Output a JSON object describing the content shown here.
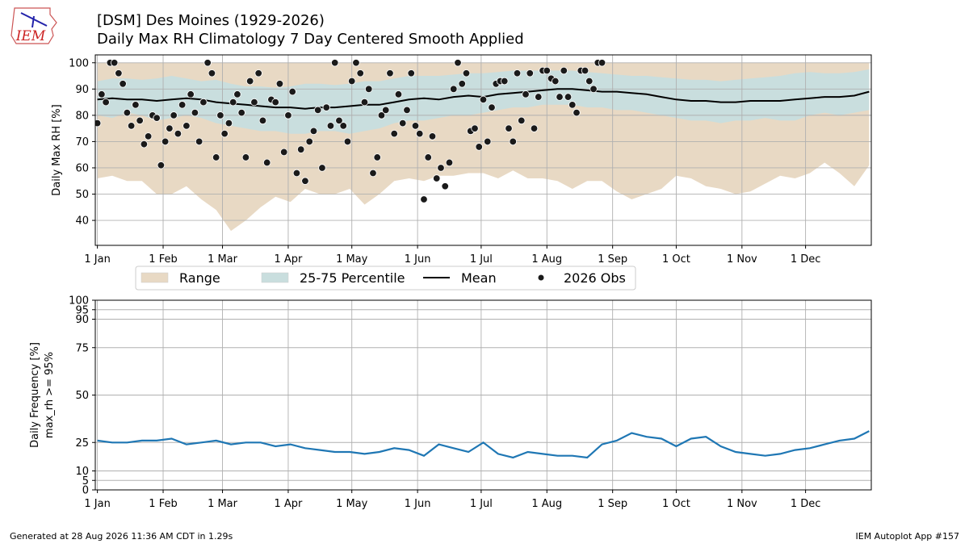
{
  "header": {
    "logo": "IEM",
    "title": "[DSM] Des Moines (1929-2026)",
    "subtitle": "Daily Max RH Climatology  7 Day Centered Smooth Applied"
  },
  "footer": {
    "left": "Generated at 28 Aug 2026 11:36 AM CDT in 1.29s",
    "right": "IEM Autoplot App #157"
  },
  "chart_data": [
    {
      "type": "area",
      "ylabel": "Daily Max RH [%]",
      "grid": true,
      "legend": "lower center",
      "xlim": [
        0,
        366
      ],
      "ylim": [
        30.5,
        103
      ],
      "xticks": [
        {
          "value": 1,
          "label": "1 Jan"
        },
        {
          "value": 32,
          "label": "1 Feb"
        },
        {
          "value": 60,
          "label": "1 Mar"
        },
        {
          "value": 91,
          "label": "1 Apr"
        },
        {
          "value": 121,
          "label": "1 May"
        },
        {
          "value": 152,
          "label": "1 Jun"
        },
        {
          "value": 182,
          "label": "1 Jul"
        },
        {
          "value": 213,
          "label": "1 Aug"
        },
        {
          "value": 244,
          "label": "1 Sep"
        },
        {
          "value": 274,
          "label": "1 Oct"
        },
        {
          "value": 305,
          "label": "1 Nov"
        },
        {
          "value": 335,
          "label": "1 Dec"
        }
      ],
      "yticks": [
        40,
        50,
        60,
        70,
        80,
        90,
        100
      ],
      "x": [
        1,
        8,
        15,
        22,
        29,
        36,
        43,
        50,
        57,
        64,
        71,
        78,
        85,
        92,
        99,
        106,
        113,
        120,
        127,
        134,
        141,
        148,
        155,
        162,
        169,
        176,
        183,
        190,
        197,
        204,
        211,
        218,
        225,
        232,
        239,
        246,
        253,
        260,
        267,
        274,
        281,
        288,
        295,
        302,
        309,
        316,
        323,
        330,
        337,
        344,
        351,
        358,
        365
      ],
      "series": [
        {
          "name": "Range",
          "kind": "band",
          "color": "#e8d9c4",
          "lower": [
            56,
            57,
            55,
            55,
            50,
            50,
            53,
            48,
            44,
            36,
            40,
            45,
            49,
            47,
            52,
            50,
            50,
            52,
            46,
            50,
            55,
            56,
            55,
            57,
            57,
            58,
            58,
            56,
            59,
            56,
            56,
            55,
            52,
            55,
            55,
            51,
            48,
            50,
            52,
            57,
            56,
            53,
            52,
            50,
            51,
            54,
            57,
            56,
            58,
            62,
            58,
            53,
            61
          ],
          "upper": [
            100,
            100,
            100,
            100,
            100,
            100,
            100,
            100,
            100,
            100,
            100,
            100,
            100,
            100,
            100,
            100,
            100,
            100,
            100,
            100,
            100,
            100,
            100,
            100,
            100,
            100,
            100,
            100,
            100,
            100,
            100,
            100,
            100,
            100,
            100,
            100,
            100,
            100,
            100,
            100,
            100,
            100,
            100,
            100,
            100,
            100,
            100,
            100,
            100,
            100,
            100,
            100,
            100
          ]
        },
        {
          "name": "25-75 Percentile",
          "kind": "band",
          "color": "#c9dede",
          "lower": [
            80,
            79,
            81,
            80,
            78,
            79,
            80,
            79,
            77,
            76,
            75,
            74,
            74,
            73,
            73,
            74,
            74,
            73,
            74,
            75,
            77,
            78,
            78,
            79,
            80,
            80,
            81,
            82,
            83,
            83,
            84,
            84,
            84,
            83,
            83,
            82,
            82,
            81,
            80,
            79,
            78,
            78,
            77,
            78,
            78,
            79,
            78,
            78,
            80,
            81,
            80,
            81,
            82
          ],
          "upper": [
            93,
            94,
            94,
            93.5,
            94,
            95,
            94,
            93,
            93.5,
            92,
            91,
            91,
            90.5,
            91,
            92,
            92,
            91.5,
            92,
            93,
            93,
            94,
            95,
            95,
            95,
            95.5,
            96,
            96,
            96.5,
            97,
            97,
            97,
            97,
            97,
            96.5,
            96,
            95.5,
            95,
            95,
            94.5,
            94,
            93.5,
            93.5,
            93,
            93.5,
            94,
            94.5,
            95,
            96,
            96.5,
            96,
            96,
            96.5,
            97.5
          ]
        },
        {
          "name": "Mean",
          "kind": "line",
          "color": "#000000",
          "values": [
            86,
            86.5,
            86,
            86,
            85.5,
            86,
            86.5,
            86,
            85,
            84.5,
            84,
            83.5,
            83,
            83,
            82.5,
            83,
            83,
            83.5,
            84,
            84,
            85,
            86,
            86.5,
            86,
            87,
            87.5,
            87,
            88,
            88.5,
            89,
            89.5,
            90,
            90,
            89.5,
            89,
            89,
            88.5,
            88,
            87,
            86,
            85.5,
            85.5,
            85,
            85,
            85.5,
            85.5,
            85.5,
            86,
            86.5,
            87,
            87,
            87.5,
            89
          ]
        },
        {
          "name": "2026 Obs",
          "kind": "scatter",
          "color": "#1a1a1a",
          "x": [
            1,
            3,
            5,
            7,
            9,
            11,
            13,
            15,
            17,
            19,
            21,
            23,
            25,
            27,
            29,
            31,
            33,
            35,
            37,
            39,
            41,
            43,
            45,
            47,
            49,
            51,
            53,
            55,
            57,
            59,
            61,
            63,
            65,
            67,
            69,
            71,
            73,
            75,
            77,
            79,
            81,
            83,
            85,
            87,
            89,
            91,
            93,
            95,
            97,
            99,
            101,
            103,
            105,
            107,
            109,
            111,
            113,
            115,
            117,
            119,
            121,
            123,
            125,
            127,
            129,
            131,
            133,
            135,
            137,
            139,
            141,
            143,
            145,
            147,
            149,
            151,
            153,
            155,
            157,
            159,
            161,
            163,
            165,
            167,
            169,
            171,
            173,
            175,
            177,
            179,
            181,
            183,
            185,
            187,
            189,
            191,
            193,
            195,
            197,
            199,
            201,
            203,
            205,
            207,
            209,
            211,
            213,
            215,
            217,
            219,
            221,
            223,
            225,
            227,
            229,
            231,
            233,
            235,
            237,
            239
          ],
          "values": [
            77,
            88,
            85,
            100,
            100,
            96,
            92,
            81,
            76,
            84,
            78,
            69,
            72,
            80,
            79,
            61,
            70,
            75,
            80,
            73,
            84,
            76,
            88,
            81,
            70,
            85,
            100,
            96,
            64,
            80,
            73,
            77,
            85,
            88,
            81,
            64,
            93,
            85,
            96,
            78,
            62,
            86,
            85,
            92,
            66,
            80,
            89,
            58,
            67,
            55,
            70,
            74,
            82,
            60,
            83,
            76,
            100,
            78,
            76,
            70,
            93,
            100,
            96,
            85,
            90,
            58,
            64,
            80,
            82,
            96,
            73,
            88,
            77,
            82,
            96,
            76,
            73,
            48,
            64,
            72,
            56,
            60,
            53,
            62,
            90,
            100,
            92,
            96,
            74,
            75,
            68,
            86,
            70,
            83,
            92,
            93,
            93,
            75,
            70,
            96,
            78,
            88,
            96,
            75,
            87,
            97,
            97,
            94,
            93,
            87,
            97,
            87,
            84,
            81,
            97,
            97,
            93,
            90,
            100,
            100
          ]
        }
      ]
    },
    {
      "type": "line",
      "ylabel": [
        "Daily Frequency [%]",
        "max_rh >= 95%"
      ],
      "grid": true,
      "xlim": [
        0,
        366
      ],
      "ylim": [
        0,
        100
      ],
      "xticks": [
        {
          "value": 1,
          "label": "1 Jan"
        },
        {
          "value": 32,
          "label": "1 Feb"
        },
        {
          "value": 60,
          "label": "1 Mar"
        },
        {
          "value": 91,
          "label": "1 Apr"
        },
        {
          "value": 121,
          "label": "1 May"
        },
        {
          "value": 152,
          "label": "1 Jun"
        },
        {
          "value": 182,
          "label": "1 Jul"
        },
        {
          "value": 213,
          "label": "1 Aug"
        },
        {
          "value": 244,
          "label": "1 Sep"
        },
        {
          "value": 274,
          "label": "1 Oct"
        },
        {
          "value": 305,
          "label": "1 Nov"
        },
        {
          "value": 335,
          "label": "1 Dec"
        }
      ],
      "yticks": [
        0,
        5,
        10,
        25,
        50,
        75,
        90,
        95,
        100
      ],
      "x": [
        1,
        8,
        15,
        22,
        29,
        36,
        43,
        50,
        57,
        64,
        71,
        78,
        85,
        92,
        99,
        106,
        113,
        120,
        127,
        134,
        141,
        148,
        155,
        162,
        169,
        176,
        183,
        190,
        197,
        204,
        211,
        218,
        225,
        232,
        239,
        246,
        253,
        260,
        267,
        274,
        281,
        288,
        295,
        302,
        309,
        316,
        323,
        330,
        337,
        344,
        351,
        358,
        365
      ],
      "series": [
        {
          "kind": "line",
          "color": "#1f77b4",
          "values": [
            26,
            25,
            25,
            26,
            26,
            27,
            24,
            25,
            26,
            24,
            25,
            25,
            23,
            24,
            22,
            21,
            20,
            20,
            19,
            20,
            22,
            21,
            18,
            24,
            22,
            20,
            25,
            19,
            17,
            20,
            19,
            18,
            18,
            17,
            24,
            26,
            30,
            28,
            27,
            23,
            27,
            28,
            23,
            20,
            19,
            18,
            19,
            21,
            22,
            24,
            26,
            27,
            31
          ]
        }
      ]
    }
  ]
}
